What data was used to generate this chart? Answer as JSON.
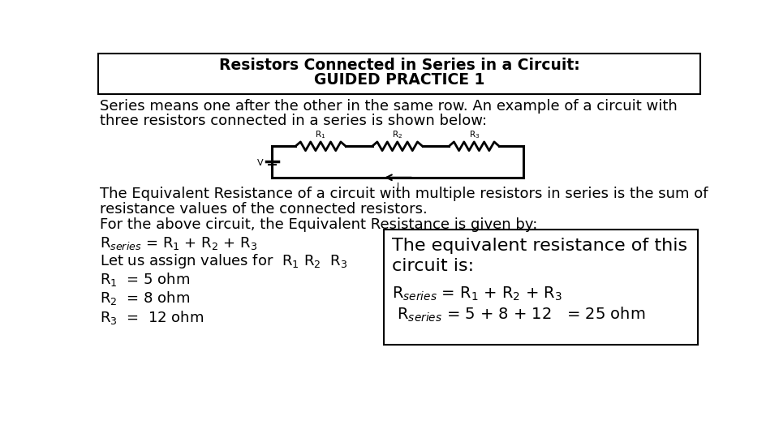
{
  "title_line1": "Resistors Connected in Series in a Circuit:",
  "title_line2": "GUIDED PRACTICE 1",
  "bg_color": "#ffffff",
  "text_color": "#000000",
  "body_text1": "Series means one after the other in the same row. An example of a circuit with",
  "body_text2": "three resistors connected in a series is shown below:",
  "body_text3": "The Equivalent Resistance of a circuit with multiple resistors in series is the sum of",
  "body_text4": "resistance values of the connected resistors.",
  "body_text5": "For the above circuit, the Equivalent Resistance is given by:"
}
